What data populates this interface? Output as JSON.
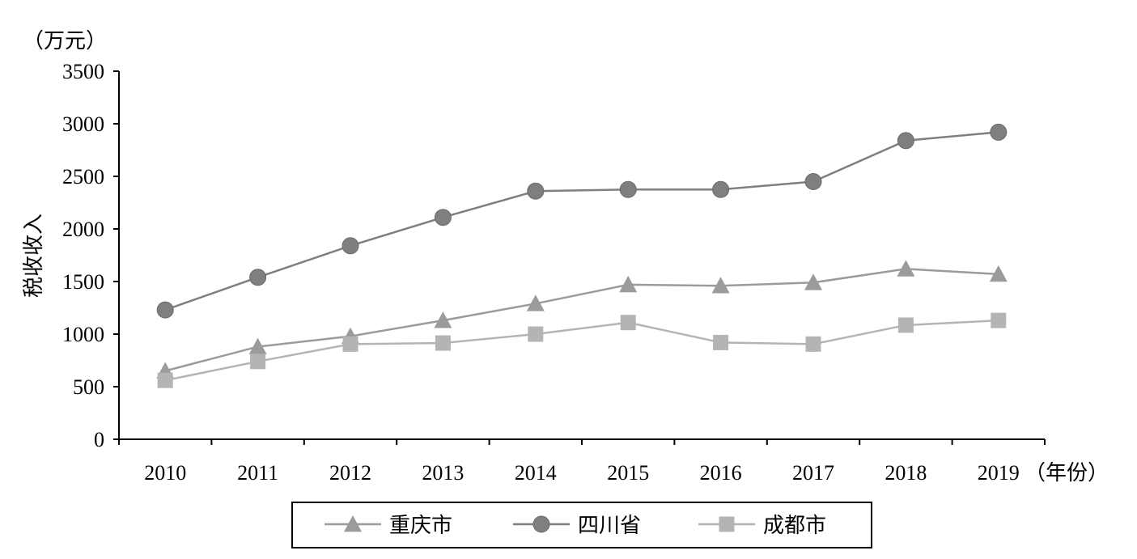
{
  "chart_data": {
    "type": "line",
    "ylabel": "税收收入",
    "yunit": "（万元）",
    "xunit": "（年份）",
    "ylim": [
      0,
      3500
    ],
    "yticks": [
      0,
      500,
      1000,
      1500,
      2000,
      2500,
      3000,
      3500
    ],
    "categories": [
      "2010",
      "2011",
      "2012",
      "2013",
      "2014",
      "2015",
      "2016",
      "2017",
      "2018",
      "2019"
    ],
    "series": [
      {
        "name": "重庆市",
        "marker": "triangle",
        "color": "#9b9b9b",
        "values": [
          650,
          880,
          980,
          1130,
          1290,
          1470,
          1460,
          1490,
          1620,
          1570
        ]
      },
      {
        "name": "四川省",
        "marker": "circle",
        "color": "#7f7f7f",
        "values": [
          1230,
          1540,
          1840,
          2110,
          2360,
          2375,
          2375,
          2450,
          2840,
          2920
        ]
      },
      {
        "name": "成都市",
        "marker": "square",
        "color": "#b4b4b4",
        "values": [
          560,
          740,
          905,
          915,
          1000,
          1110,
          920,
          905,
          1085,
          1130
        ]
      }
    ],
    "grid": false,
    "legend_position": "bottom"
  }
}
